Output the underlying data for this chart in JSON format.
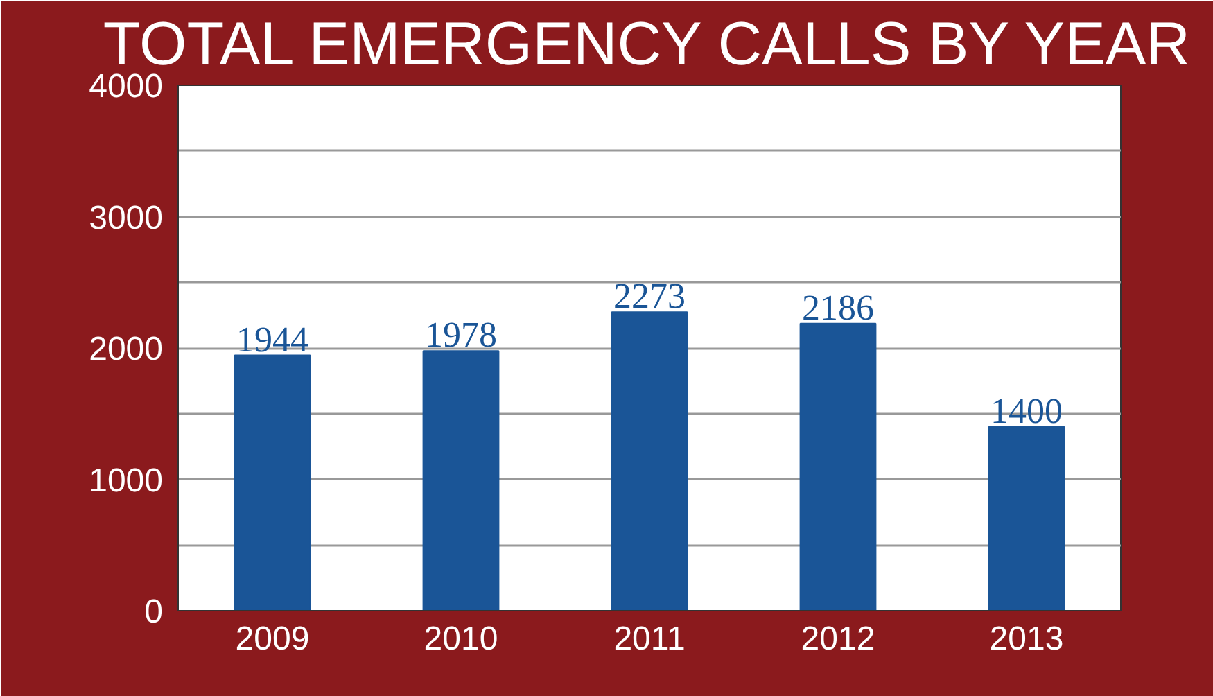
{
  "chart_data": {
    "type": "bar",
    "title": "TOTAL EMERGENCY CALLS BY YEAR",
    "categories": [
      "2009",
      "2010",
      "2011",
      "2012",
      "2013"
    ],
    "values": [
      1944,
      1978,
      2273,
      2186,
      1400
    ],
    "color": "#1a5597",
    "ylim": [
      0,
      4000
    ],
    "yticks": [
      0,
      {
        "value": 500,
        "label": null
      },
      1000,
      {
        "value": 1500,
        "label": null
      },
      2000,
      {
        "value": 2500,
        "label": null
      },
      3000,
      {
        "value": 3500,
        "label": null
      },
      4000
    ],
    "grid": "y",
    "data_labels": true
  }
}
